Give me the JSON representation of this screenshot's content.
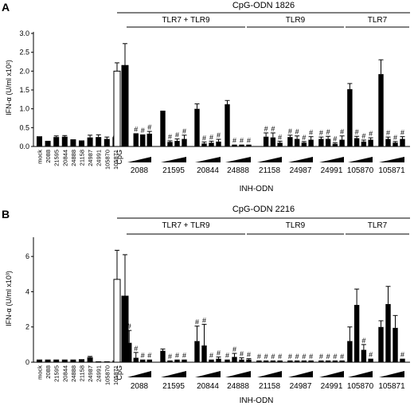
{
  "chart_data": [
    {
      "panel": "A",
      "type": "bar",
      "title": "CpG-ODN 1826",
      "ylabel": "IFN-α (U/ml x10²)",
      "xlabel": "INH-ODN",
      "ylim": [
        0,
        3.0
      ],
      "yticks": [
        "0.0",
        "0.5",
        "1.0",
        "1.5",
        "2.0",
        "2.5",
        "3.0"
      ],
      "receptor_groups": [
        "TLR7 + TLR9",
        "TLR9",
        "TLR7"
      ],
      "control_labels": [
        "mock",
        "2088",
        "21595",
        "20844",
        "24888",
        "21158",
        "24987",
        "24991",
        "105870",
        "105871"
      ],
      "control_values": [
        0.27,
        0.15,
        0.25,
        0.26,
        0.19,
        0.16,
        0.24,
        0.25,
        0.2,
        0.25
      ],
      "control_errors": [
        0,
        0,
        0.03,
        0.03,
        0,
        0,
        0.06,
        0.06,
        0.05,
        0.02
      ],
      "cpg_label": "CpG",
      "cpg_bars": [
        {
          "value": 2.0,
          "error": 0.22,
          "open": true
        },
        {
          "value": 2.15,
          "error": 0.58,
          "open": false
        }
      ],
      "inh_groups": [
        {
          "label": "2088",
          "values": [
            0.35,
            0.32,
            0.34
          ],
          "errors": [
            0,
            0,
            0.06
          ],
          "marks": [
            "#",
            "#",
            "#"
          ]
        },
        {
          "label": "21595",
          "values": [
            0.95,
            0.12,
            0.15,
            0.2
          ],
          "errors": [
            0,
            0.03,
            0.05,
            0.1
          ],
          "marks": [
            "",
            "#",
            "#",
            "#"
          ]
        },
        {
          "label": "20844",
          "values": [
            1.0,
            0.08,
            0.1,
            0.13
          ],
          "errors": [
            0.13,
            0.04,
            0.04,
            0.06
          ],
          "marks": [
            "",
            "#",
            "#",
            "#"
          ]
        },
        {
          "label": "24888",
          "values": [
            1.12,
            0.05,
            0.05,
            0.05
          ],
          "errors": [
            0.1,
            0,
            0,
            0
          ],
          "marks": [
            "",
            "#",
            "#",
            "#"
          ]
        },
        {
          "label": "21158",
          "values": [
            0.26,
            0.24,
            0.1
          ],
          "errors": [
            0.1,
            0.12,
            0.04
          ],
          "marks": [
            "#",
            "#",
            "#"
          ]
        },
        {
          "label": "24987",
          "values": [
            0.25,
            0.2,
            0.1,
            0.18
          ],
          "errors": [
            0.05,
            0.08,
            0.03,
            0.08
          ],
          "marks": [
            "#",
            "#",
            "#",
            "#"
          ]
        },
        {
          "label": "24991",
          "values": [
            0.2,
            0.2,
            0.07,
            0.18
          ],
          "errors": [
            0.05,
            0.07,
            0.03,
            0.1
          ],
          "marks": [
            "#",
            "#",
            "#",
            "#"
          ]
        },
        {
          "label": "105870",
          "values": [
            1.52,
            0.22,
            0.13,
            0.18
          ],
          "errors": [
            0.15,
            0.05,
            0.04,
            0.05
          ],
          "marks": [
            "",
            "#",
            "#",
            "#"
          ]
        },
        {
          "label": "105871",
          "values": [
            1.92,
            0.2,
            0.1,
            0.2
          ],
          "errors": [
            0.38,
            0.05,
            0.03,
            0.06
          ],
          "marks": [
            "",
            "#",
            "#",
            "#"
          ]
        }
      ]
    },
    {
      "panel": "B",
      "type": "bar",
      "title": "CpG-ODN 2216",
      "ylabel": "IFN-α (U/ml x10³)",
      "xlabel": "INH-ODN",
      "ylim": [
        0,
        7
      ],
      "yticks": [
        "0",
        "2",
        "4",
        "6"
      ],
      "receptor_groups": [
        "TLR7 + TLR9",
        "TLR9",
        "TLR7"
      ],
      "control_labels": [
        "mock",
        "2088",
        "21595",
        "20844",
        "24888",
        "21158",
        "24987",
        "24991",
        "105870",
        "105871"
      ],
      "control_values": [
        0.15,
        0.15,
        0.15,
        0.15,
        0.15,
        0.17,
        0.28,
        0.05,
        0.05,
        0.1
      ],
      "control_errors": [
        0,
        0,
        0,
        0,
        0,
        0,
        0.05,
        0,
        0,
        0
      ],
      "cpg_label": "CpG",
      "cpg_bars": [
        {
          "value": 4.7,
          "error": 1.65,
          "open": true
        },
        {
          "value": 3.75,
          "error": 2.35,
          "open": false
        }
      ],
      "inh_groups": [
        {
          "label": "2088",
          "values": [
            1.1,
            0.25,
            0.15,
            0.15
          ],
          "errors": [
            0.7,
            0.3,
            0,
            0
          ],
          "marks": [
            "#",
            "#",
            "#",
            "#"
          ]
        },
        {
          "label": "21595",
          "values": [
            0.65,
            0.1,
            0.15,
            0.15
          ],
          "errors": [
            0.1,
            0,
            0,
            0
          ],
          "marks": [
            "",
            "#",
            "#",
            "#"
          ]
        },
        {
          "label": "20844",
          "values": [
            1.2,
            0.95,
            0.15,
            0.2
          ],
          "errors": [
            0.85,
            1.2,
            0,
            0.1
          ],
          "marks": [
            "#",
            "#",
            "#",
            "#"
          ]
        },
        {
          "label": "24888",
          "values": [
            0.15,
            0.3,
            0.15,
            0.15
          ],
          "errors": [
            0,
            0.2,
            0.1,
            0.05
          ],
          "marks": [
            "#",
            "#",
            "#",
            "#"
          ]
        },
        {
          "label": "21158",
          "values": [
            0.1,
            0.1,
            0.1,
            0.1
          ],
          "errors": [
            0,
            0,
            0,
            0
          ],
          "marks": [
            "#",
            "#",
            "#",
            "#"
          ]
        },
        {
          "label": "24987",
          "values": [
            0.1,
            0.1,
            0.1,
            0.1
          ],
          "errors": [
            0,
            0,
            0,
            0
          ],
          "marks": [
            "#",
            "#",
            "#",
            "#"
          ]
        },
        {
          "label": "24991",
          "values": [
            0.1,
            0.1,
            0.1,
            0.1
          ],
          "errors": [
            0,
            0,
            0,
            0
          ],
          "marks": [
            "#",
            "#",
            "#",
            "#"
          ]
        },
        {
          "label": "105870",
          "values": [
            1.2,
            3.25,
            0.7,
            0.2
          ],
          "errors": [
            0.8,
            0.9,
            0.3,
            0
          ],
          "marks": [
            "",
            "",
            "#",
            "#"
          ]
        },
        {
          "label": "105871",
          "values": [
            2.0,
            3.3,
            1.95,
            0.2
          ],
          "errors": [
            0.35,
            1.0,
            0.7,
            0
          ],
          "marks": [
            "",
            "",
            "",
            "#"
          ]
        }
      ]
    }
  ]
}
